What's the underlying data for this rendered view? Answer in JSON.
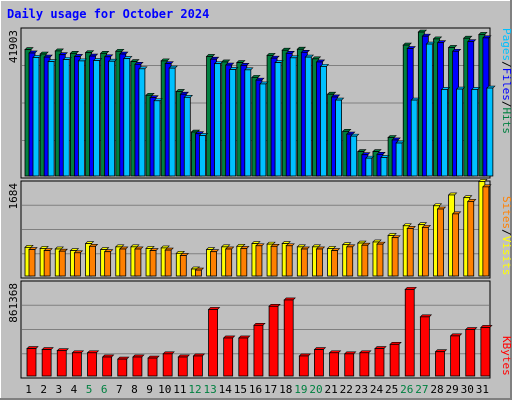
{
  "title": "Daily usage for October 2024",
  "colors": {
    "background": "#c0c0c0",
    "title": "#0000ff",
    "hits": "#008040",
    "files": "#0000ff",
    "pages": "#00c0ff",
    "visits": "#ffff00",
    "sites": "#ff8000",
    "kbytes": "#ff0000",
    "weekend_label": "#008040",
    "weekday_label": "#000000"
  },
  "legend": {
    "pages": "Pages",
    "files": "Files",
    "hits": "Hits",
    "sites": "Sites",
    "visits": "Visits",
    "kbytes": "KBytes",
    "sep": "/"
  },
  "chart_data": {
    "type": "bar",
    "title": "Daily usage for October 2024",
    "categories": [
      "1",
      "2",
      "3",
      "4",
      "5",
      "6",
      "7",
      "8",
      "9",
      "10",
      "11",
      "12",
      "13",
      "14",
      "15",
      "16",
      "17",
      "18",
      "19",
      "20",
      "21",
      "22",
      "23",
      "24",
      "25",
      "26",
      "27",
      "28",
      "29",
      "30",
      "31"
    ],
    "weekend_days": [
      "5",
      "6",
      "12",
      "13",
      "19",
      "20",
      "26",
      "27"
    ],
    "panels": [
      {
        "name": "hits-files-pages",
        "max_label": "41903",
        "max": 41903,
        "series": [
          {
            "name": "Hits",
            "values": [
              36800,
              35500,
              36400,
              35700,
              35900,
              35700,
              36300,
              33300,
              23500,
              33500,
              24600,
              12800,
              34800,
              33200,
              33000,
              28700,
              35100,
              36600,
              36900,
              34100,
              23800,
              13000,
              7100,
              7100,
              11200,
              38100,
              41900,
              39900,
              37400,
              40100,
              41200
            ]
          },
          {
            "name": "Files",
            "values": [
              35800,
              34600,
              35300,
              34800,
              34900,
              34700,
              35500,
              32500,
              22800,
              32700,
              23800,
              12300,
              34000,
              32300,
              32200,
              27900,
              34300,
              35700,
              36000,
              33200,
              23000,
              12200,
              6200,
              6300,
              10500,
              37100,
              40700,
              38800,
              36300,
              39100,
              40200
            ]
          },
          {
            "name": "Pages",
            "values": [
              34500,
              33300,
              33900,
              33500,
              33600,
              33400,
              34200,
              31200,
              21900,
              31400,
              22900,
              11800,
              32700,
              31000,
              30900,
              26800,
              33000,
              34400,
              34600,
              31900,
              22100,
              11600,
              5200,
              5400,
              9600,
              22100,
              38400,
              25200,
              25300,
              25200,
              25600
            ]
          }
        ]
      },
      {
        "name": "visits-sites",
        "max_label": "1684",
        "max": 1684,
        "series": [
          {
            "name": "Visits",
            "values": [
              530,
              510,
              500,
              470,
              600,
              490,
              540,
              540,
              510,
              520,
              420,
              130,
              490,
              540,
              550,
              600,
              590,
              600,
              540,
              540,
              510,
              580,
              610,
              630,
              750,
              930,
              950,
              1300,
              1500,
              1450,
              1750
            ]
          },
          {
            "name": "Sites",
            "values": [
              490,
              470,
              460,
              430,
              550,
              450,
              500,
              500,
              470,
              480,
              380,
              110,
              450,
              500,
              510,
              560,
              550,
              560,
              500,
              500,
              470,
              540,
              570,
              590,
              710,
              880,
              900,
              1240,
              1150,
              1380,
              1650
            ]
          }
        ]
      },
      {
        "name": "kbytes",
        "max_label": "861368",
        "max": 861368,
        "series": [
          {
            "name": "KBytes",
            "values": [
              260000,
              250000,
              240000,
              220000,
              220000,
              180000,
              160000,
              180000,
              170000,
              210000,
              180000,
              190000,
              630000,
              360000,
              360000,
              480000,
              660000,
              720000,
              190000,
              250000,
              220000,
              210000,
              220000,
              260000,
              300000,
              820000,
              560000,
              230000,
              380000,
              440000,
              460000
            ]
          }
        ]
      }
    ]
  }
}
